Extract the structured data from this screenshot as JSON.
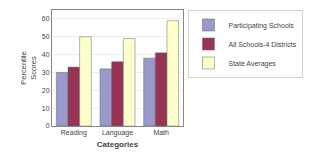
{
  "chart_data": {
    "type": "bar",
    "categories": [
      "Reading",
      "Language",
      "Math"
    ],
    "series": [
      {
        "name": "Participating Schools",
        "color": "#9999cc",
        "values": [
          30,
          32,
          38
        ]
      },
      {
        "name": "All Schools-4 Districts",
        "color": "#993355",
        "values": [
          33,
          36,
          41
        ]
      },
      {
        "name": "State Averages",
        "color": "#ffffcc",
        "values": [
          50,
          49,
          59
        ]
      }
    ],
    "xlabel": "Categories",
    "ylabel": "Percentile\nScores",
    "ylim": [
      0,
      65
    ],
    "yticks": [
      0,
      10,
      20,
      30,
      40,
      50,
      60
    ],
    "grid": true,
    "legend": "right"
  }
}
